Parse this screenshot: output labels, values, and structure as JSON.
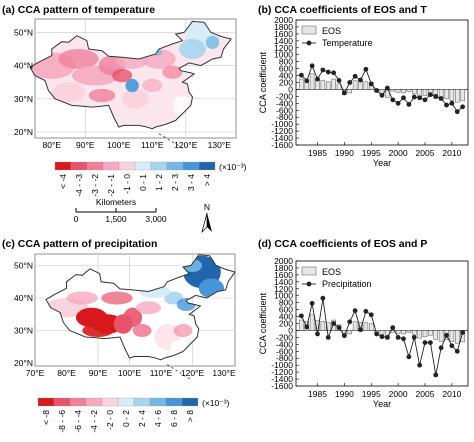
{
  "figure_a": {
    "title": "(a) CCA pattern of temperature",
    "lat_labels": [
      "50°N",
      "40°N",
      "30°N",
      "20°N"
    ],
    "lon_labels": [
      "80°E",
      "90°E",
      "100°E",
      "110°E",
      "120°E",
      "130°E"
    ],
    "legend_labels": [
      "< -4",
      "-4 - -3",
      "-3 - -2",
      "-2 - -1",
      "-1 - 0",
      "0 - 1",
      "1 - 2",
      "2 - 3",
      "3 - 4",
      "> 4"
    ],
    "legend_colors": [
      "#d7191c",
      "#e8536b",
      "#f07f9b",
      "#f6a9bf",
      "#fbd3df",
      "#d6ecf7",
      "#a9d4ef",
      "#75b7e4",
      "#4696d7",
      "#2166ac"
    ],
    "unit": "(×10⁻³)",
    "scalebar_title": "Kilometers",
    "scalebar_ticks": [
      "0",
      "1,500",
      "3,000"
    ],
    "north": "N"
  },
  "figure_c": {
    "title": "(c) CCA pattern of precipitation",
    "lat_labels": [
      "50°N",
      "40°N",
      "30°N",
      "20°N"
    ],
    "lon_labels": [
      "70°E",
      "80°E",
      "90°E",
      "100°E",
      "110°E",
      "120°E",
      "130°E"
    ],
    "legend_labels": [
      "< -8",
      "-8 - -6",
      "-6 - -4",
      "-4 - -2",
      "-2 - 0",
      "0 - 2",
      "2 - 4",
      "4 - 6",
      "6 - 8",
      "> 8"
    ],
    "legend_colors": [
      "#d7191c",
      "#e8536b",
      "#f07f9b",
      "#f6a9bf",
      "#fbd3df",
      "#d6ecf7",
      "#a9d4ef",
      "#75b7e4",
      "#4696d7",
      "#2166ac"
    ],
    "unit": "(×10⁻³)"
  },
  "chart_data": [
    {
      "type": "bar",
      "title": "(b) CCA coefficients of EOS and T",
      "xlabel": "Year",
      "ylabel": "CCA coefficient",
      "ylim": [
        -1600,
        2000
      ],
      "yticks": [
        "2000",
        "1800",
        "1600",
        "1400",
        "1200",
        "1000",
        "800",
        "600",
        "400",
        "200",
        "0",
        "-200",
        "-400",
        "-600",
        "-800",
        "-1000",
        "-1200",
        "-1400",
        "-1600"
      ],
      "xticks": [
        "1985",
        "1990",
        "1995",
        "2000",
        "2005",
        "2010"
      ],
      "x": [
        1982,
        1983,
        1984,
        1985,
        1986,
        1987,
        1988,
        1989,
        1990,
        1991,
        1992,
        1993,
        1994,
        1995,
        1996,
        1997,
        1998,
        1999,
        2000,
        2001,
        2002,
        2003,
        2004,
        2005,
        2006,
        2007,
        2008,
        2009,
        2010,
        2011,
        2012
      ],
      "series": [
        {
          "name": "EOS",
          "kind": "bar",
          "color": "#e6e6e6",
          "values": [
            300,
            250,
            450,
            280,
            260,
            220,
            300,
            160,
            -150,
            -100,
            250,
            230,
            220,
            200,
            -80,
            -120,
            -230,
            -50,
            -80,
            -100,
            -60,
            -130,
            -220,
            -180,
            -140,
            -260,
            -310,
            -270,
            -320,
            -370,
            -330
          ]
        },
        {
          "name": "Temperature",
          "kind": "line",
          "color": "#222222",
          "values": [
            410,
            250,
            680,
            300,
            560,
            500,
            480,
            260,
            -100,
            200,
            380,
            270,
            580,
            160,
            -30,
            -170,
            40,
            -300,
            -400,
            -240,
            -430,
            -220,
            -240,
            -300,
            -150,
            -200,
            -260,
            -450,
            -400,
            -640,
            -500
          ]
        }
      ]
    },
    {
      "type": "bar",
      "title": "(d) CCA coefficients of EOS and P",
      "xlabel": "Year",
      "ylabel": "CCA coefficient",
      "ylim": [
        -1600,
        2000
      ],
      "yticks": [
        "2000",
        "1800",
        "1600",
        "1400",
        "1200",
        "1000",
        "800",
        "600",
        "400",
        "200",
        "0",
        "-200",
        "-400",
        "-600",
        "-800",
        "-1000",
        "-1200",
        "-1400",
        "-1600"
      ],
      "xticks": [
        "1985",
        "1990",
        "1995",
        "2000",
        "2005",
        "2010"
      ],
      "x": [
        1982,
        1983,
        1984,
        1985,
        1986,
        1987,
        1988,
        1989,
        1990,
        1991,
        1992,
        1993,
        1994,
        1995,
        1996,
        1997,
        1998,
        1999,
        2000,
        2001,
        2002,
        2003,
        2004,
        2005,
        2006,
        2007,
        2008,
        2009,
        2010,
        2011,
        2012
      ],
      "series": [
        {
          "name": "EOS",
          "kind": "bar",
          "color": "#e6e6e6",
          "values": [
            300,
            250,
            450,
            280,
            260,
            220,
            300,
            160,
            -150,
            -100,
            250,
            230,
            220,
            200,
            -80,
            -120,
            -230,
            -50,
            -80,
            -100,
            -60,
            -130,
            -220,
            -180,
            -140,
            -260,
            -310,
            -270,
            -320,
            -370,
            -330
          ]
        },
        {
          "name": "Precipitation",
          "kind": "line",
          "color": "#222222",
          "values": [
            420,
            100,
            780,
            -100,
            930,
            -200,
            200,
            80,
            -150,
            250,
            570,
            20,
            550,
            450,
            -100,
            -180,
            -200,
            80,
            -200,
            -240,
            -760,
            -200,
            -1000,
            -350,
            -350,
            -1280,
            -500,
            -140,
            -440,
            -600,
            -60
          ]
        }
      ]
    }
  ]
}
